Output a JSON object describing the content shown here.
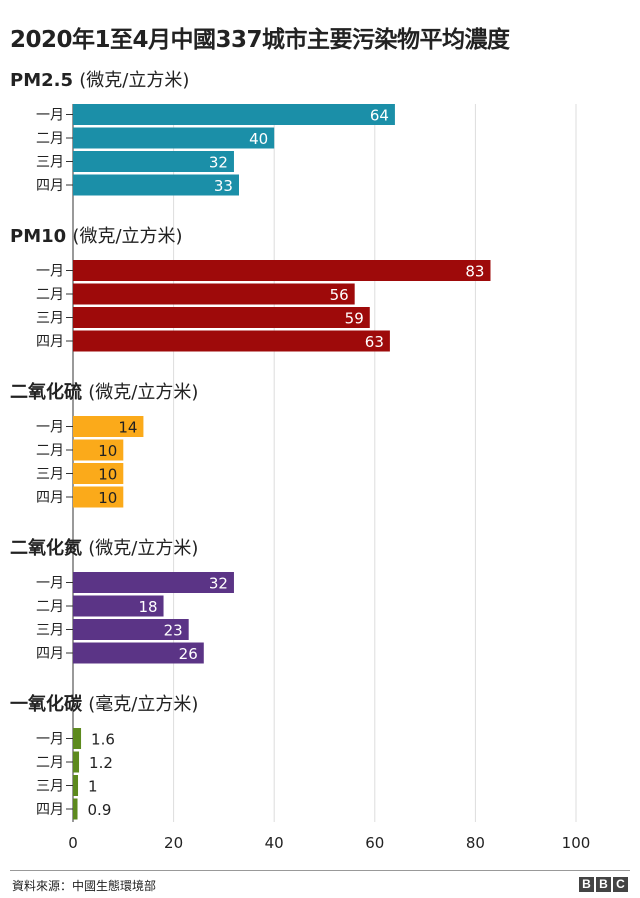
{
  "title": "2020年1至4月中國337城市主要污染物平均濃度",
  "chart_data": {
    "type": "bar",
    "orientation": "horizontal",
    "title": "2020年1至4月中國337城市主要污染物平均濃度",
    "categories": [
      "一月",
      "二月",
      "三月",
      "四月"
    ],
    "xlim": [
      0,
      100
    ],
    "xticks": [
      0,
      20,
      40,
      60,
      80,
      100
    ],
    "grid": true,
    "panels": [
      {
        "name": "PM2.5",
        "unit": "(微克/立方米)",
        "color": "#1b8fa8",
        "values": [
          64,
          40,
          32,
          33
        ],
        "labels": [
          "64",
          "40",
          "32",
          "33"
        ],
        "label_position": "inside"
      },
      {
        "name": "PM10",
        "unit": "(微克/立方米)",
        "color": "#9e0a0a",
        "values": [
          83,
          56,
          59,
          63
        ],
        "labels": [
          "83",
          "56",
          "59",
          "63"
        ],
        "label_position": "inside"
      },
      {
        "name": "二氧化硫",
        "unit": "(微克/立方米)",
        "color": "#fbaa1a",
        "values": [
          14,
          10,
          10,
          10
        ],
        "labels": [
          "14",
          "10",
          "10",
          "10"
        ],
        "label_position": "inside"
      },
      {
        "name": "二氧化氮",
        "unit": "(微克/立方米)",
        "color": "#5b3486",
        "values": [
          32,
          18,
          23,
          26
        ],
        "labels": [
          "32",
          "18",
          "23",
          "26"
        ],
        "label_position": "inside"
      },
      {
        "name": "一氧化碳",
        "unit": "(毫克/立方米)",
        "color": "#5d8a1e",
        "values": [
          1.6,
          1.2,
          1,
          0.9
        ],
        "labels": [
          "1.6",
          "1.2",
          "1",
          "0.9"
        ],
        "label_position": "outside"
      }
    ]
  },
  "source": "資料來源：中國生態環境部",
  "logo": [
    "B",
    "B",
    "C"
  ]
}
